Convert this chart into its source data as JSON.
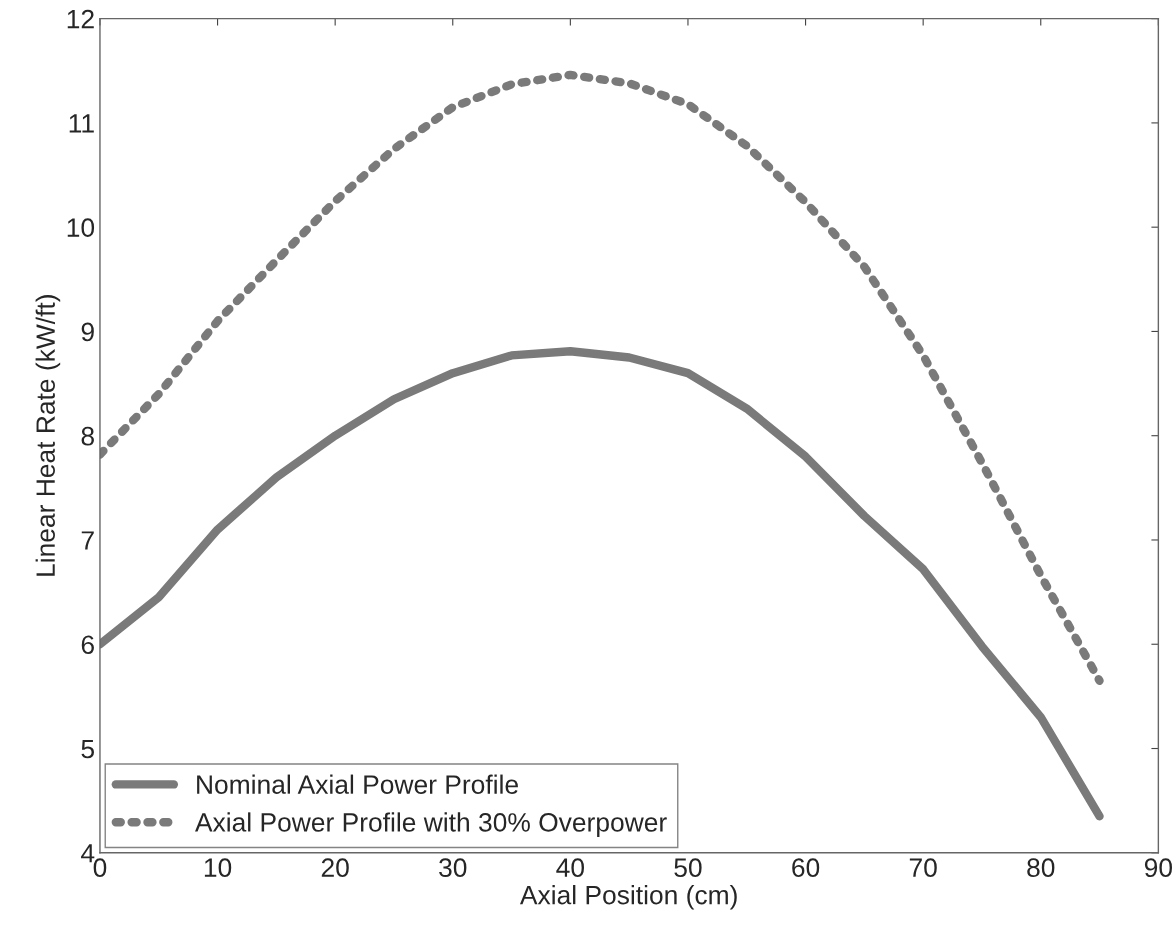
{
  "chart_data": {
    "type": "line",
    "xlabel": "Axial Position (cm)",
    "ylabel": "Linear Heat Rate (kW/ft)",
    "x": [
      0,
      5,
      10,
      15,
      20,
      25,
      30,
      35,
      40,
      45,
      50,
      55,
      60,
      65,
      70,
      75,
      80,
      85
    ],
    "series": [
      {
        "name": "Nominal Axial Power Profile",
        "color": "#7a7a7a",
        "line_style": "solid",
        "values": [
          6.0,
          6.45,
          7.1,
          7.6,
          8.0,
          8.35,
          8.6,
          8.77,
          8.81,
          8.75,
          8.6,
          8.26,
          7.8,
          7.23,
          6.72,
          5.98,
          5.3,
          4.35
        ]
      },
      {
        "name": "Axial Power Profile with 30% Overpower",
        "color": "#7a7a7a",
        "line_style": "dotted",
        "values": [
          7.82,
          8.4,
          9.1,
          9.68,
          10.25,
          10.75,
          11.15,
          11.37,
          11.46,
          11.38,
          11.18,
          10.78,
          10.24,
          9.62,
          8.77,
          7.74,
          6.66,
          5.65
        ]
      }
    ],
    "xlim": [
      0,
      90
    ],
    "xticks": [
      0,
      10,
      20,
      30,
      40,
      50,
      60,
      70,
      80,
      90
    ],
    "ylim": [
      4,
      12
    ],
    "yticks": [
      4,
      5,
      6,
      7,
      8,
      9,
      10,
      11,
      12
    ],
    "legend": "bottom left",
    "grid": false
  }
}
